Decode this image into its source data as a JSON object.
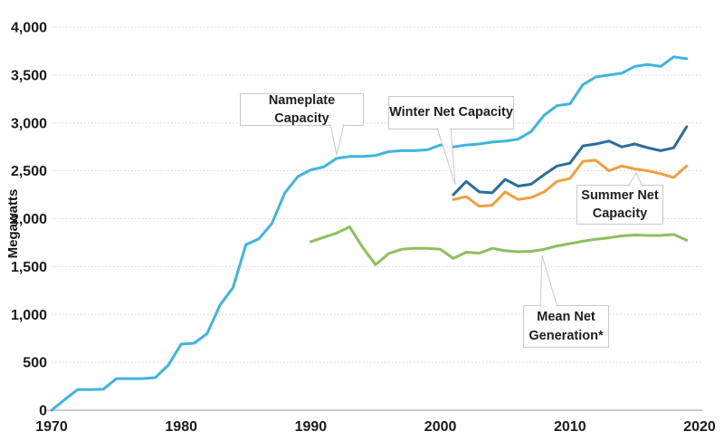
{
  "chart_data": {
    "type": "line",
    "title": "",
    "xlabel": "",
    "ylabel": "Megawatts",
    "x_range": [
      1970,
      2020
    ],
    "y_range": [
      0,
      4000
    ],
    "grid": "horizontal dotted gridlines, white background, no legend box (inline callout labels)",
    "yticks": [
      0,
      500,
      1000,
      1500,
      2000,
      2500,
      3000,
      3500,
      4000
    ],
    "ytick_labels": [
      "0",
      "500",
      "1,000",
      "1,500",
      "2,000",
      "2,500",
      "3,000",
      "3,500",
      "4,000"
    ],
    "xticks": [
      1970,
      1980,
      1990,
      2000,
      2010,
      2020
    ],
    "series": [
      {
        "name": "Nameplate Capacity",
        "color": "#3fb4e1",
        "start_year": 1970,
        "values": [
          0,
          110,
          215,
          215,
          220,
          330,
          330,
          330,
          340,
          470,
          690,
          700,
          800,
          1100,
          1280,
          1730,
          1790,
          1950,
          2270,
          2440,
          2510,
          2540,
          2630,
          2650,
          2650,
          2660,
          2700,
          2710,
          2710,
          2720,
          2770,
          2750,
          2770,
          2780,
          2800,
          2810,
          2830,
          2910,
          3080,
          3180,
          3200,
          3400,
          3480,
          3500,
          3520,
          3590,
          3610,
          3590,
          3690,
          3670
        ]
      },
      {
        "name": "Winter Net Capacity",
        "color": "#2a6e9e",
        "start_year": 2001,
        "values": [
          2250,
          2390,
          2280,
          2270,
          2410,
          2340,
          2360,
          2460,
          2550,
          2580,
          2760,
          2780,
          2810,
          2750,
          2780,
          2740,
          2710,
          2740,
          2960
        ]
      },
      {
        "name": "Summer Net Capacity",
        "color": "#efa03f",
        "start_year": 2001,
        "values": [
          2200,
          2230,
          2130,
          2140,
          2280,
          2200,
          2220,
          2280,
          2390,
          2420,
          2600,
          2610,
          2500,
          2550,
          2520,
          2500,
          2470,
          2430,
          2550
        ]
      },
      {
        "name": "Mean Net Generation*",
        "color": "#8dc05c",
        "start_year": 1990,
        "values": [
          1760,
          1805,
          1850,
          1915,
          1700,
          1520,
          1635,
          1680,
          1690,
          1690,
          1680,
          1585,
          1650,
          1640,
          1690,
          1665,
          1655,
          1660,
          1680,
          1715,
          1740,
          1765,
          1785,
          1800,
          1820,
          1830,
          1825,
          1825,
          1835,
          1775
        ]
      }
    ]
  },
  "annotations": {
    "nameplate": {
      "lines": [
        "Nameplate Capacity"
      ]
    },
    "winter": {
      "lines": [
        "Winter Net Capacity"
      ]
    },
    "summer": {
      "lines": [
        "Summer Net",
        "Capacity"
      ]
    },
    "mean": {
      "lines": [
        "Mean Net",
        "Generation*"
      ]
    }
  }
}
